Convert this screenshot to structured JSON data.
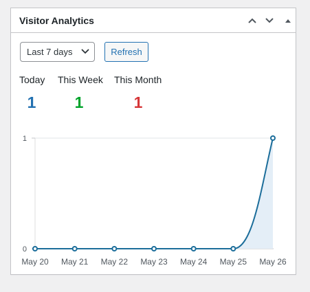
{
  "widget": {
    "title": "Visitor Analytics"
  },
  "controls": {
    "range_selected": "Last 7 days",
    "refresh_label": "Refresh"
  },
  "stats": [
    {
      "label": "Today",
      "value": "1",
      "color": "#2271b1"
    },
    {
      "label": "This Week",
      "value": "1",
      "color": "#00a32a"
    },
    {
      "label": "This Month",
      "value": "1",
      "color": "#d63638"
    }
  ],
  "icons": [
    "chevron-up-icon",
    "chevron-down-icon",
    "triangle-up-icon",
    "select-caret-icon"
  ],
  "chart_data": {
    "type": "line",
    "title": "",
    "xlabel": "",
    "ylabel": "",
    "categories": [
      "May 20",
      "May 21",
      "May 22",
      "May 23",
      "May 24",
      "May 25",
      "May 26"
    ],
    "series": [
      {
        "values": [
          0,
          0,
          0,
          0,
          0,
          0,
          1
        ],
        "color": "#1b6d9a",
        "fill": "#e4eef7"
      }
    ],
    "yticks": [
      "0",
      "1"
    ],
    "ylim": [
      0,
      1
    ],
    "grid": true,
    "legend": "none"
  }
}
